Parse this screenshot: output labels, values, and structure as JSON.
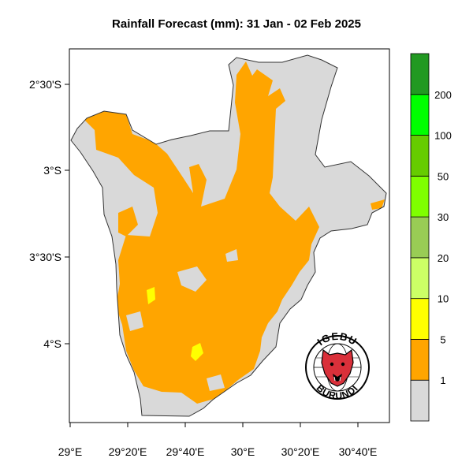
{
  "map": {
    "title": "Rainfall Forecast (mm): 31 Jan - 02 Feb  2025",
    "lat_ticks": [
      "2°30'S",
      "3°S",
      "3°30'S",
      "4°S"
    ],
    "lon_ticks": [
      "29°E",
      "29°20'E",
      "29°40'E",
      "30°E",
      "30°20'E",
      "30°40'E"
    ],
    "colors": {
      "no_rain": "#d9d9d9",
      "rain_1_5": "#ffa500",
      "rain_5_10": "#ffff00",
      "border": "#333333"
    }
  },
  "legend": {
    "labels": [
      "1",
      "5",
      "10",
      "20",
      "30",
      "50",
      "100",
      "200"
    ],
    "colors": [
      "#d9d9d9",
      "#ffa500",
      "#ffff00",
      "#ccff66",
      "#99cc55",
      "#7fff00",
      "#66cc00",
      "#00ff00",
      "#229922"
    ]
  },
  "logo": {
    "top_text": "IGEBU",
    "bottom_text": "BURUNDI"
  }
}
